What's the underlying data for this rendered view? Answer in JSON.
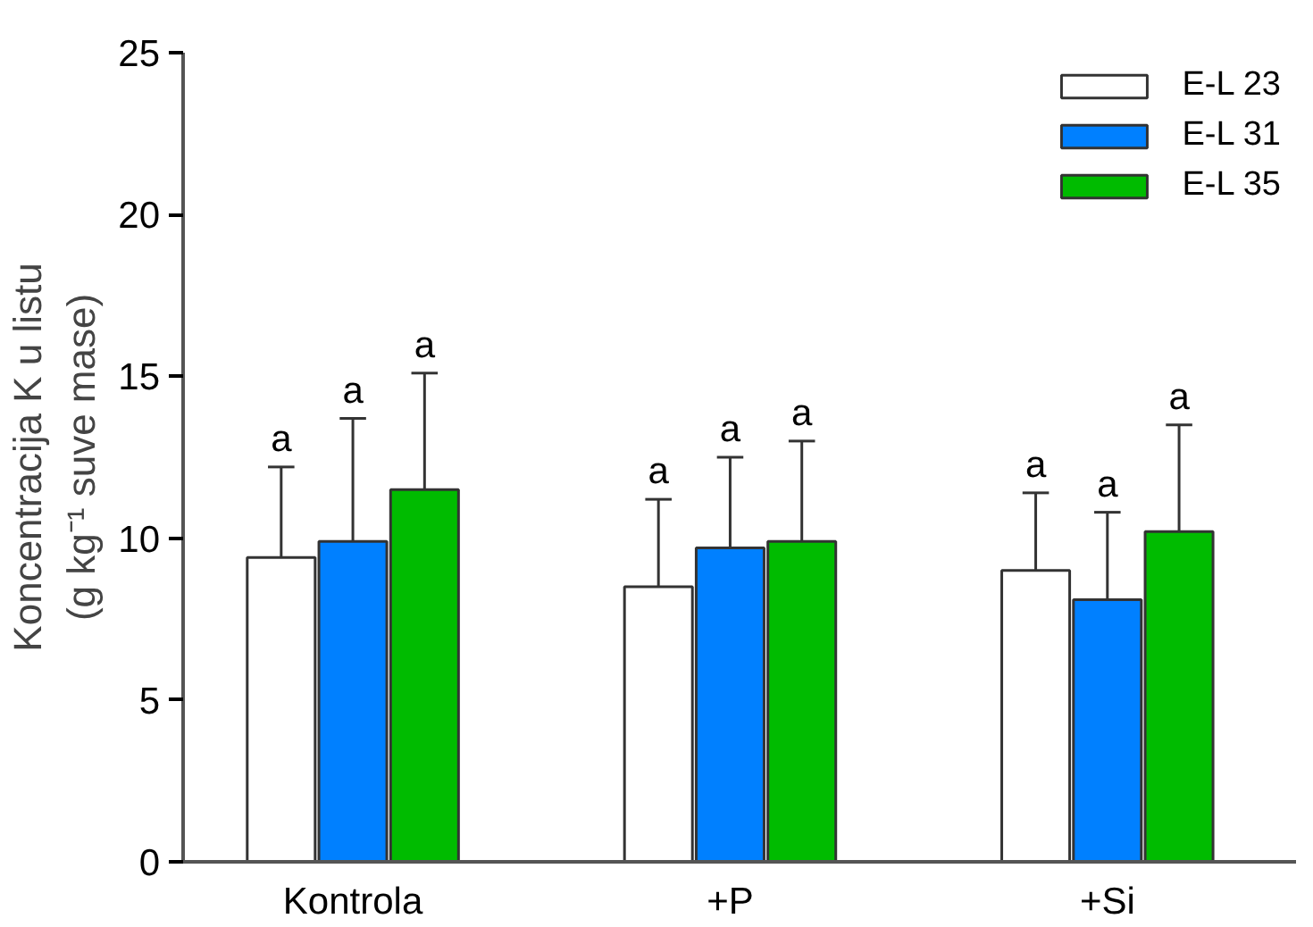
{
  "chart_data": {
    "type": "bar",
    "ylabel": "Koncentracija K u listu\n(g kg⁻¹ suve mase)",
    "categories": [
      "Kontrola",
      "+P",
      "+Si"
    ],
    "series": [
      {
        "name": "E-L 23",
        "color": "#ffffff",
        "values": [
          9.4,
          8.5,
          9.0
        ],
        "errors": [
          [
            9.4,
            12.2
          ],
          [
            8.5,
            11.2
          ],
          [
            9.0,
            11.4
          ]
        ]
      },
      {
        "name": "E-L 31",
        "color": "#0080ff",
        "values": [
          9.9,
          9.7,
          8.1
        ],
        "errors": [
          [
            9.9,
            13.7
          ],
          [
            9.7,
            12.5
          ],
          [
            8.1,
            10.8
          ]
        ]
      },
      {
        "name": "E-L 35",
        "color": "#00bb00",
        "values": [
          11.5,
          9.9,
          10.2
        ],
        "errors": [
          [
            11.5,
            15.1
          ],
          [
            9.9,
            13.0
          ],
          [
            10.2,
            13.5
          ]
        ]
      }
    ],
    "annotations": [
      "a",
      "a",
      "a",
      "a",
      "a",
      "a",
      "a",
      "a",
      "a"
    ],
    "ylim": [
      0,
      25
    ],
    "yticks": [
      0,
      5,
      10,
      15,
      20,
      25
    ],
    "grid": false,
    "legend": "top right"
  }
}
